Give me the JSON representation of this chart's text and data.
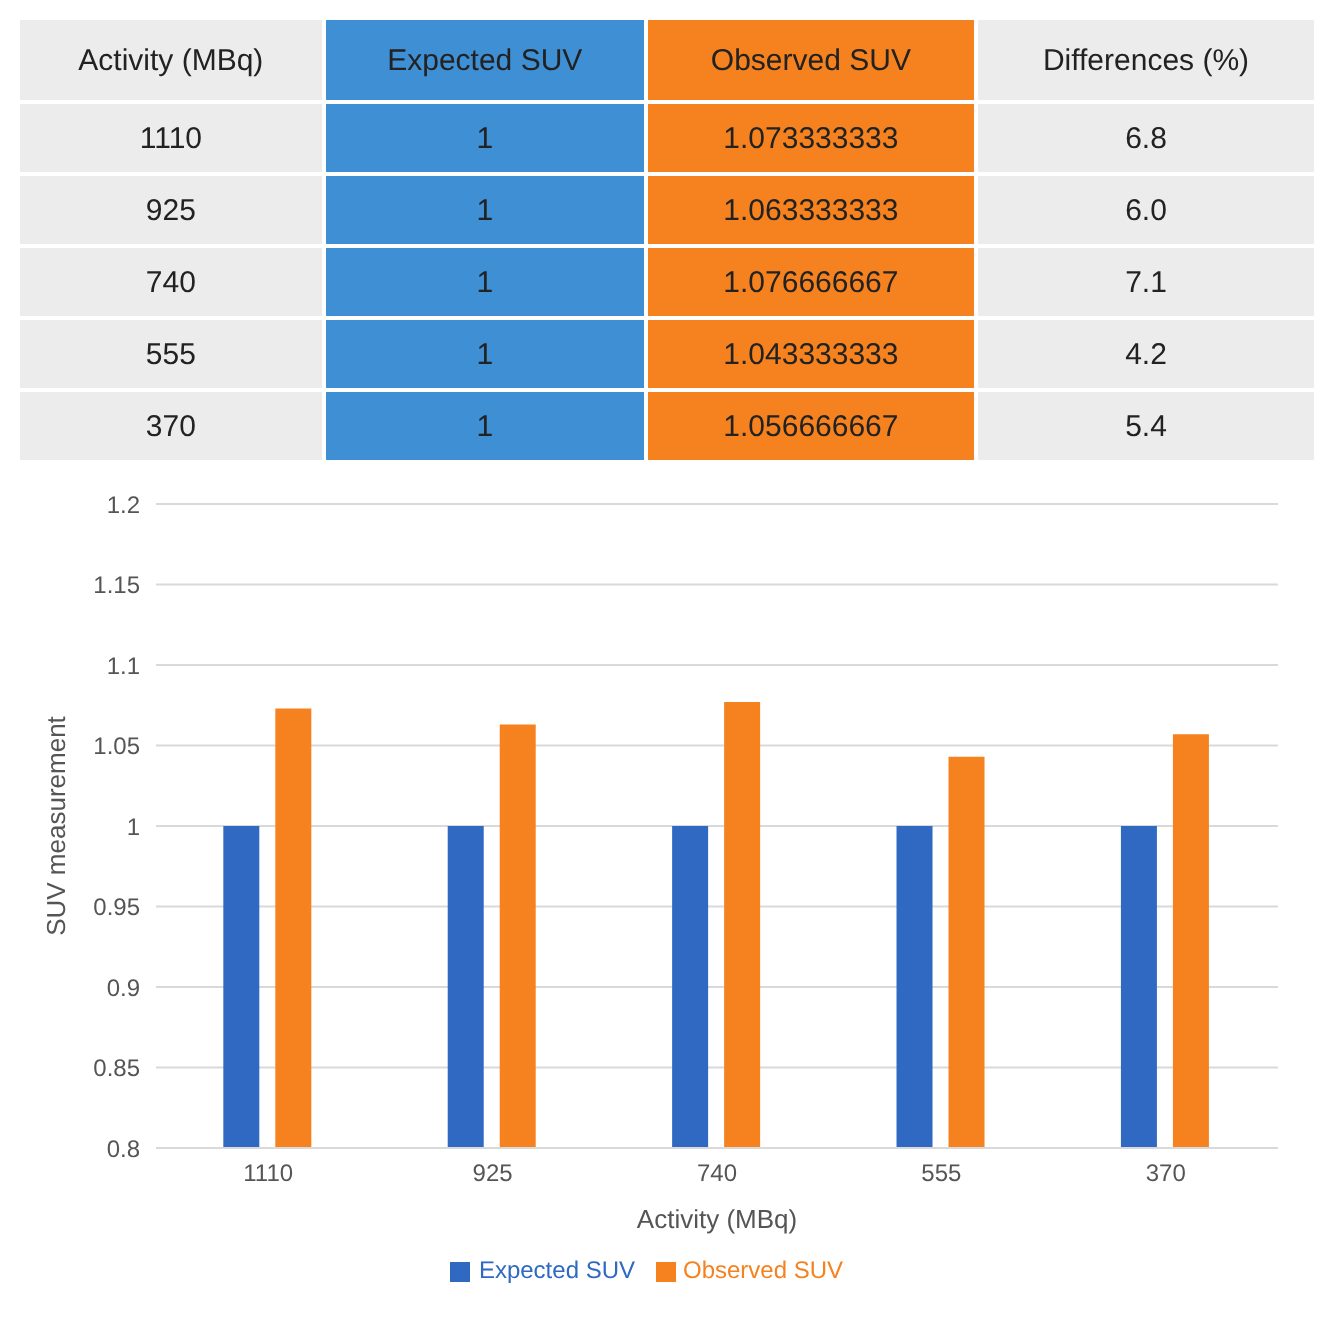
{
  "chart_data": [
    {
      "type": "heatmap",
      "ylabel": "Activity (MBq)",
      "categories": [
        "Expected SUV",
        "Observed SUV",
        "Differences (%)"
      ],
      "y_categories": [
        "1110",
        "925",
        "740",
        "555",
        "370"
      ],
      "cells": [
        [
          1,
          1.073333333,
          6.8
        ],
        [
          1,
          1.063333333,
          6.0
        ],
        [
          1,
          1.076666667,
          7.1
        ],
        [
          1,
          1.043333333,
          4.2
        ],
        [
          1,
          1.056666667,
          5.4
        ]
      ],
      "cell_labels": [
        [
          "1",
          "1.073333333",
          "6.8"
        ],
        [
          "1",
          "1.063333333",
          "6.0"
        ],
        [
          "1",
          "1.076666667",
          "7.1"
        ],
        [
          "1",
          "1.043333333",
          "4.2"
        ],
        [
          "1",
          "1.056666667",
          "5.4"
        ]
      ],
      "colors": [
        "#3f8fd4",
        "#f5821f",
        "#ececec"
      ]
    },
    {
      "type": "bar",
      "xlabel": "Activity (MBq)",
      "ylabel": "SUV measurement",
      "categories": [
        "1110",
        "925",
        "740",
        "555",
        "370"
      ],
      "series": [
        {
          "name": "Expected SUV",
          "color": "#2f69c2",
          "values": [
            1,
            1,
            1,
            1,
            1
          ]
        },
        {
          "name": "Observed SUV",
          "color": "#f5821f",
          "values": [
            1.073,
            1.063,
            1.077,
            1.043,
            1.057
          ]
        }
      ],
      "ylim": [
        0.8,
        1.2
      ],
      "yticks": [
        0.8,
        0.85,
        0.9,
        0.95,
        1,
        1.05,
        1.1,
        1.15,
        1.2
      ],
      "grid": "y",
      "legend": "bottom"
    }
  ]
}
